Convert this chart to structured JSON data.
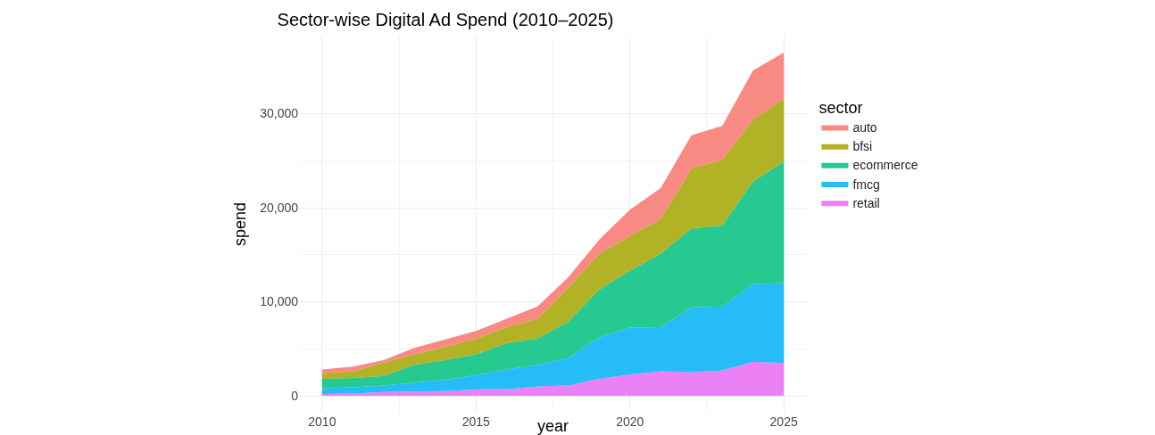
{
  "chart_data": {
    "type": "area",
    "stacked": true,
    "title": "Sector-wise Digital Ad Spend (2010–2025)",
    "xlabel": "year",
    "ylabel": "spend",
    "legend_title": "sector",
    "legend": "right",
    "grid": true,
    "x": [
      2010,
      2011,
      2012,
      2013,
      2014,
      2015,
      2016,
      2017,
      2018,
      2019,
      2020,
      2021,
      2022,
      2023,
      2024,
      2025
    ],
    "xlim": [
      2009.25,
      2025.75
    ],
    "xticks": [
      2010,
      2015,
      2020,
      2025
    ],
    "ylim": [
      -1800,
      38300
    ],
    "yticks": [
      {
        "value": 0,
        "label": "0"
      },
      {
        "value": 10000,
        "label": "10,000"
      },
      {
        "value": 20000,
        "label": "20,000"
      },
      {
        "value": 30000,
        "label": "30,000"
      }
    ],
    "series": [
      {
        "name": "retail",
        "color": "#e76bf3",
        "values": [
          200,
          250,
          400,
          450,
          500,
          700,
          700,
          1000,
          1100,
          1800,
          2250,
          2600,
          2500,
          2700,
          3600,
          3500
        ]
      },
      {
        "name": "fmcg",
        "color": "#00b0f6",
        "values": [
          600,
          650,
          700,
          950,
          1200,
          1500,
          2100,
          2300,
          2900,
          4400,
          5000,
          4700,
          6900,
          6800,
          8300,
          8500
        ]
      },
      {
        "name": "ecommerce",
        "color": "#00bf7d",
        "values": [
          1000,
          1000,
          1000,
          1900,
          2100,
          2200,
          2800,
          2800,
          3900,
          5100,
          6050,
          7800,
          8400,
          8600,
          10900,
          12900
        ]
      },
      {
        "name": "bfsi",
        "color": "#a3a500",
        "values": [
          600,
          700,
          1400,
          1100,
          1400,
          1700,
          1700,
          2100,
          3600,
          3800,
          3700,
          3700,
          6400,
          7000,
          6600,
          6700
        ]
      },
      {
        "name": "auto",
        "color": "#f8766d",
        "values": [
          400,
          500,
          300,
          700,
          800,
          800,
          900,
          1300,
          1100,
          1500,
          2800,
          3300,
          3500,
          3600,
          5200,
          4900
        ]
      }
    ]
  }
}
